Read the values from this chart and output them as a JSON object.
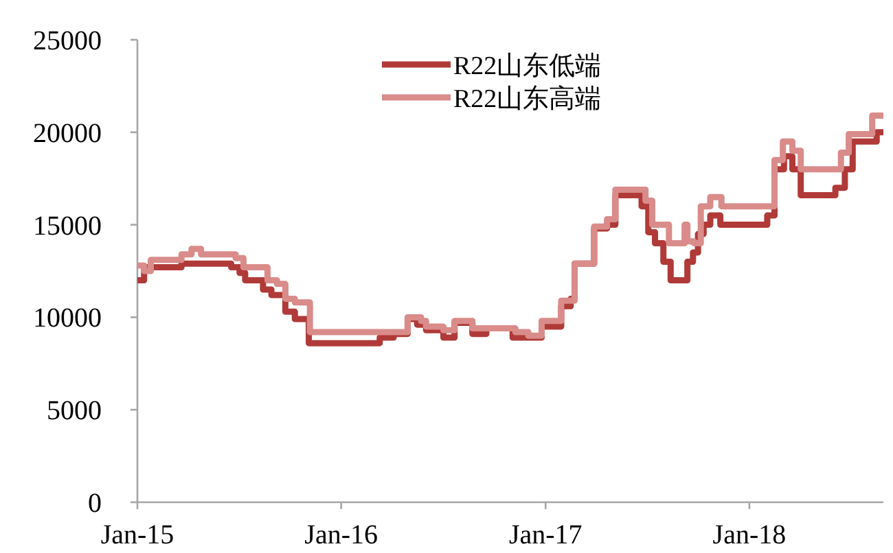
{
  "chart_data": {
    "type": "step",
    "xlim": [
      "2015-01-01",
      "2018-08-29"
    ],
    "xticks": [
      {
        "value": "2015-01-01",
        "label": "Jan-15"
      },
      {
        "value": "2016-01-01",
        "label": "Jan-16"
      },
      {
        "value": "2017-01-01",
        "label": "Jan-17"
      },
      {
        "value": "2018-01-01",
        "label": "Jan-18"
      }
    ],
    "ylim": [
      0,
      25000
    ],
    "yticks": [
      0,
      5000,
      10000,
      15000,
      20000,
      25000
    ],
    "grid": false,
    "legend": "top",
    "series": [
      {
        "name": "R22山东低端",
        "color": "#b03a38",
        "x": [
          "2015-01-01",
          "2015-01-13",
          "2015-03-21",
          "2015-06-18",
          "2015-07-03",
          "2015-07-13",
          "2015-08-14",
          "2015-08-29",
          "2015-09-23",
          "2015-10-10",
          "2015-11-04",
          "2016-03-10",
          "2016-04-04",
          "2016-04-29",
          "2016-05-16",
          "2016-06-01",
          "2016-07-02",
          "2016-07-22",
          "2016-08-23",
          "2016-09-17",
          "2016-11-03",
          "2016-12-25",
          "2017-01-29",
          "2017-02-15",
          "2017-02-22",
          "2017-03-29",
          "2017-04-21",
          "2017-05-06",
          "2017-06-22",
          "2017-07-04",
          "2017-07-16",
          "2017-07-31",
          "2017-08-13",
          "2017-09-12",
          "2017-09-22",
          "2017-10-01",
          "2017-10-11",
          "2017-10-23",
          "2017-11-10",
          "2018-02-02",
          "2018-02-15",
          "2018-03-04",
          "2018-03-19",
          "2018-04-03",
          "2018-06-04",
          "2018-06-21",
          "2018-07-05",
          "2018-08-17",
          "2018-08-29"
        ],
        "values": [
          12000,
          12700,
          12900,
          12700,
          12400,
          12000,
          11500,
          11200,
          10300,
          9900,
          8600,
          8900,
          9100,
          9900,
          9600,
          9300,
          8900,
          9700,
          9100,
          9400,
          8900,
          9500,
          10600,
          11000,
          12900,
          14800,
          15000,
          16600,
          16000,
          14600,
          14000,
          13000,
          12000,
          13000,
          13500,
          14500,
          15000,
          15500,
          15000,
          15500,
          18000,
          18700,
          18000,
          16600,
          17000,
          18000,
          19500,
          20000,
          20000
        ]
      },
      {
        "name": "R22山东高端",
        "color": "#d98c8a",
        "x": [
          "2015-01-01",
          "2015-01-13",
          "2015-01-25",
          "2015-03-21",
          "2015-04-08",
          "2015-04-25",
          "2015-06-26",
          "2015-07-10",
          "2015-08-22",
          "2015-09-08",
          "2015-09-23",
          "2015-10-10",
          "2015-11-06",
          "2016-03-30",
          "2016-04-29",
          "2016-05-23",
          "2016-06-01",
          "2016-07-02",
          "2016-07-22",
          "2016-08-23",
          "2016-11-08",
          "2016-12-01",
          "2016-12-25",
          "2017-01-29",
          "2017-02-22",
          "2017-03-29",
          "2017-04-21",
          "2017-05-06",
          "2017-06-29",
          "2017-07-11",
          "2017-08-10",
          "2017-09-07",
          "2017-09-12",
          "2017-09-24",
          "2017-10-06",
          "2017-10-23",
          "2017-11-12",
          "2018-02-07",
          "2018-02-15",
          "2018-03-02",
          "2018-03-19",
          "2018-04-03",
          "2018-06-14",
          "2018-06-28",
          "2018-08-09",
          "2018-08-29"
        ],
        "values": [
          12800,
          12500,
          13100,
          13400,
          13700,
          13400,
          13200,
          12700,
          12000,
          11800,
          11000,
          10800,
          9200,
          9200,
          10000,
          9800,
          9500,
          9300,
          9800,
          9400,
          9200,
          9000,
          9800,
          10900,
          12900,
          14900,
          15300,
          16900,
          16300,
          15000,
          14000,
          15000,
          14100,
          14000,
          16000,
          16500,
          16000,
          16000,
          18500,
          19500,
          19000,
          18000,
          18900,
          19900,
          20900,
          20900
        ]
      }
    ]
  }
}
